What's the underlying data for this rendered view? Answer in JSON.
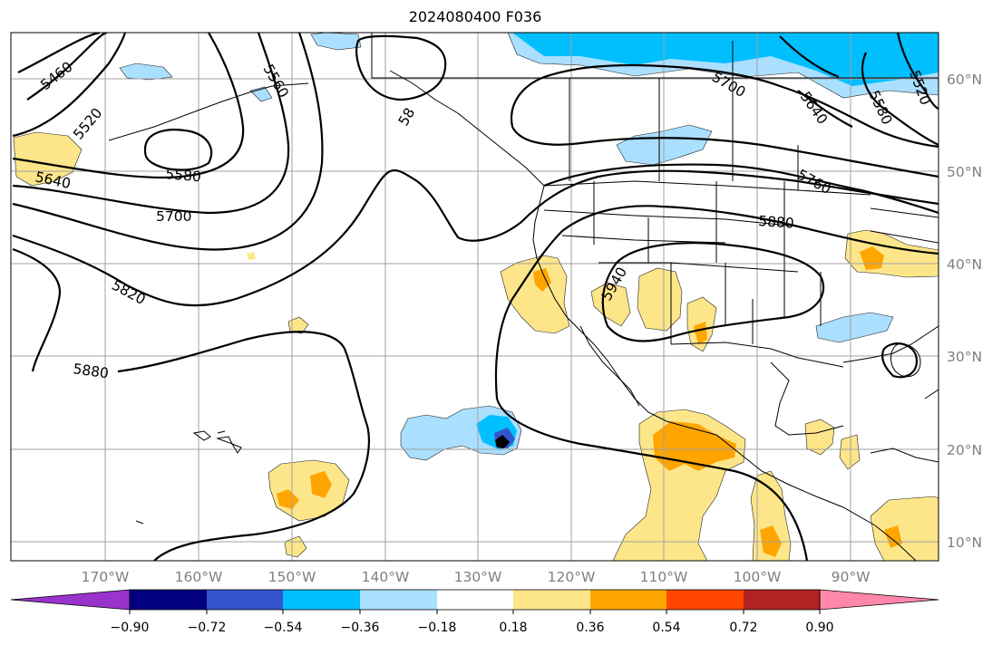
{
  "title": "2024080400 F036",
  "map": {
    "lon_labels": [
      "170°W",
      "160°W",
      "150°W",
      "140°W",
      "130°W",
      "120°W",
      "110°W",
      "100°W",
      "90°W"
    ],
    "lat_labels": [
      "60°N",
      "50°N",
      "40°N",
      "30°N",
      "20°N",
      "10°N"
    ],
    "contour_labels": [
      "5460",
      "5520",
      "5560",
      "5640",
      "5580",
      "5700",
      "5820",
      "5880",
      "5940",
      "58",
      "5700",
      "5640",
      "5580",
      "5520",
      "5760",
      "5880"
    ],
    "contour_values": [
      5460,
      5520,
      5580,
      5640,
      5700,
      5760,
      5820,
      5880,
      5940
    ]
  },
  "colorbar": {
    "ticks": [
      "−0.90",
      "−0.72",
      "−0.54",
      "−0.36",
      "−0.18",
      "0.18",
      "0.36",
      "0.54",
      "0.72",
      "0.90"
    ],
    "colors": [
      "#9933cc",
      "#000080",
      "#3355cc",
      "#00bfff",
      "#aadfff",
      "#ffffff",
      "#fde68a",
      "#ffa500",
      "#ff4500",
      "#b22222",
      "#ff88aa"
    ]
  }
}
